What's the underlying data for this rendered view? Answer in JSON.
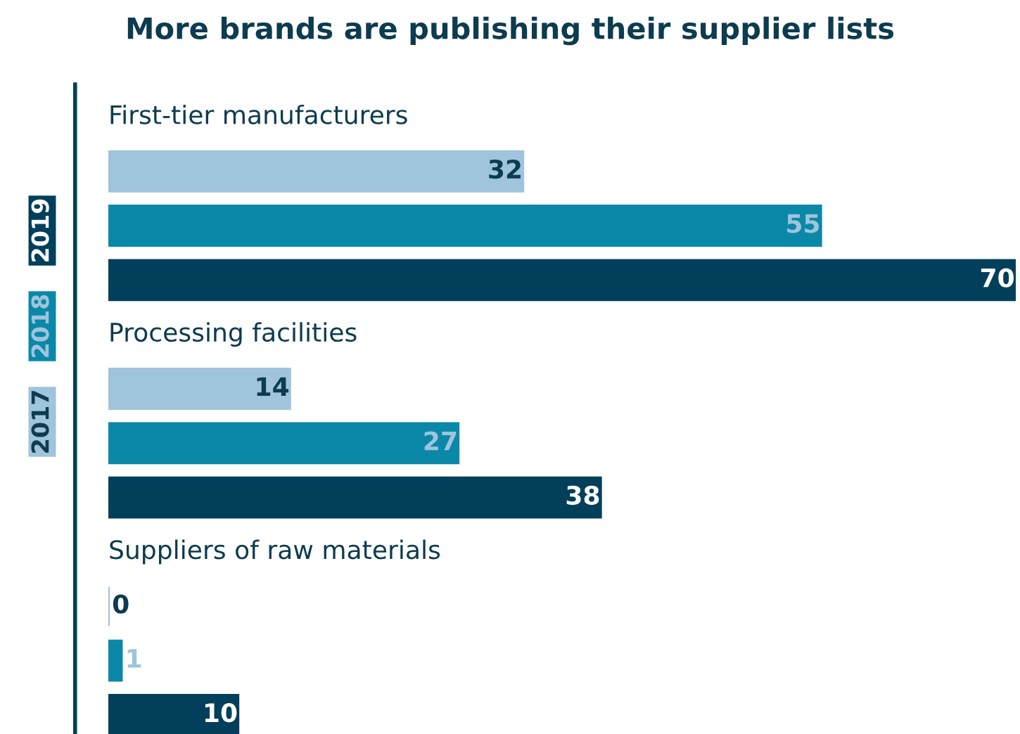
{
  "chart_data": {
    "type": "bar",
    "orientation": "horizontal",
    "title": "More brands are publishing their supplier lists",
    "categories": [
      "First-tier manufacturers",
      "Processing facilities",
      "Suppliers of raw materials"
    ],
    "series": [
      {
        "name": "2017",
        "color": "#9fc4dc",
        "values": [
          32,
          14,
          0
        ]
      },
      {
        "name": "2018",
        "color": "#0b88a8",
        "values": [
          55,
          27,
          1
        ]
      },
      {
        "name": "2019",
        "color": "#023f5a",
        "values": [
          70,
          38,
          10
        ]
      }
    ],
    "data_labels": true,
    "legend": "left"
  }
}
